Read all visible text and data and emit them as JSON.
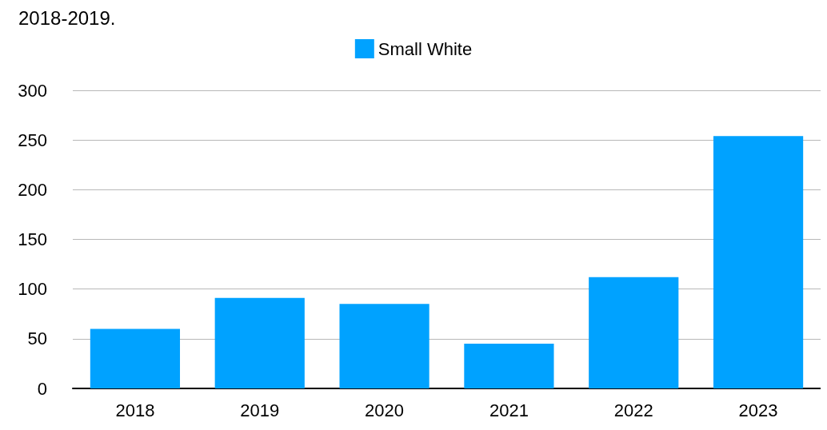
{
  "chart_data": {
    "type": "bar",
    "annotations": [
      "2018-2019."
    ],
    "categories": [
      "2018",
      "2019",
      "2020",
      "2021",
      "2022",
      "2023"
    ],
    "series": [
      {
        "name": "Small White",
        "color": "#00a2ff",
        "values": [
          60,
          91,
          85,
          45,
          112,
          254
        ]
      }
    ],
    "ylim": [
      0,
      300
    ],
    "yticks": [
      0,
      50,
      100,
      150,
      200,
      250,
      300
    ],
    "grid": "y",
    "legend": "top"
  }
}
